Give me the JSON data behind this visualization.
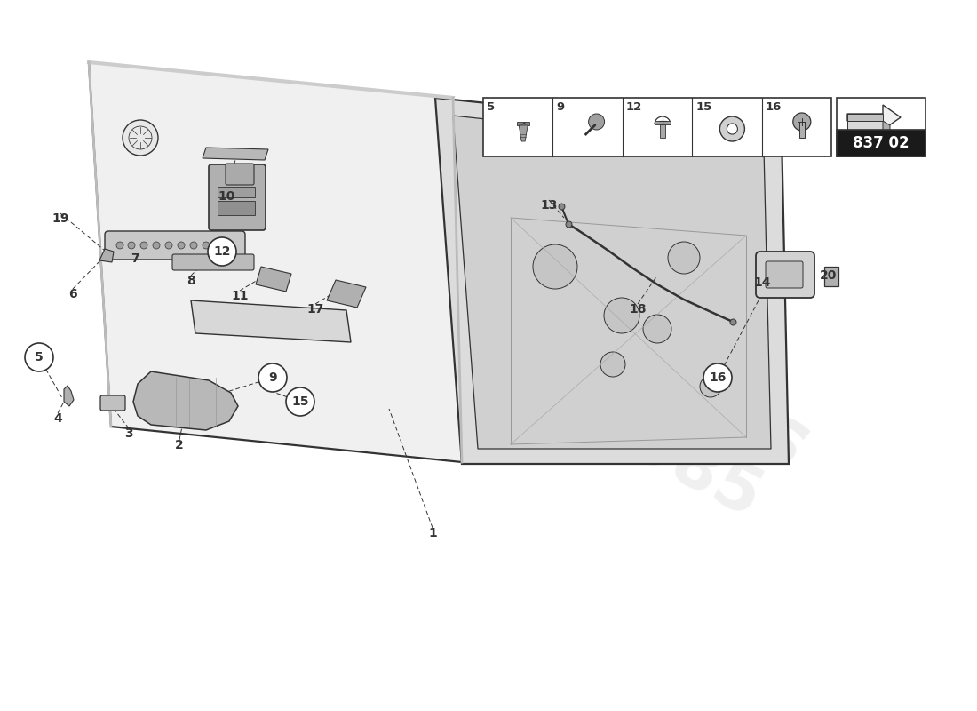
{
  "title": "",
  "background_color": "#ffffff",
  "fig_width": 11.0,
  "fig_height": 8.0,
  "line_color": "#333333",
  "part_number_text": "837 02"
}
